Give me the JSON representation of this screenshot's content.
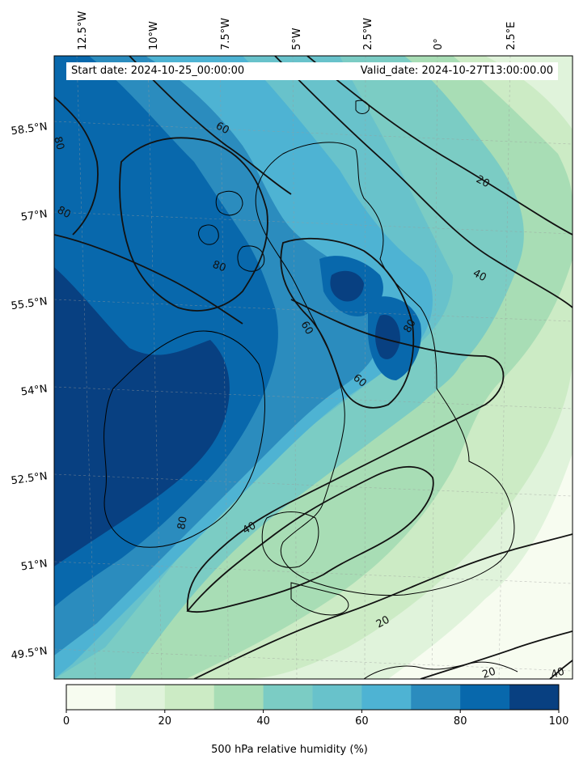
{
  "map": {
    "start_date": "Start date: 2024-10-25_00:00:00",
    "valid_date": "Valid_date: 2024-10-27T13:00:00.00",
    "lon_labels": [
      "12.5°W",
      "10°W",
      "7.5°W",
      "5°W",
      "2.5°W",
      "0°",
      "2.5°E"
    ],
    "lat_labels": [
      "58.5°N",
      "57°N",
      "55.5°N",
      "54°N",
      "52.5°N",
      "51°N",
      "49.5°N"
    ],
    "contour_labels": [
      "20",
      "20",
      "20",
      "40",
      "40",
      "40",
      "60",
      "60",
      "60",
      "80",
      "80",
      "80",
      "80",
      "80"
    ],
    "colors": [
      "#f7fcf0",
      "#e0f3db",
      "#ccebc5",
      "#a8ddb5",
      "#7bccc4",
      "#4eb3d3",
      "#2b8cbe",
      "#0868ac",
      "#084081"
    ]
  },
  "colorbar": {
    "label": "500 hPa relative humidity (%)",
    "ticks": [
      "0",
      "20",
      "40",
      "60",
      "80",
      "100"
    ],
    "bins": [
      "#f7fcf0",
      "#e0f3db",
      "#ccebc5",
      "#a8ddb5",
      "#7bccc4",
      "#68c2cb",
      "#4eb3d3",
      "#2b8cbe",
      "#0868ac",
      "#084081"
    ]
  }
}
